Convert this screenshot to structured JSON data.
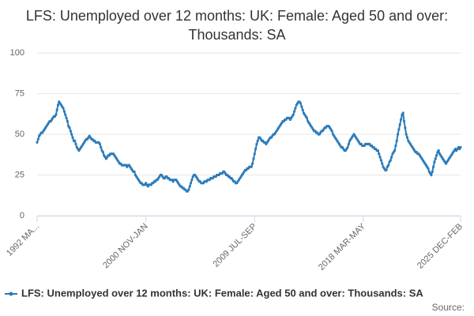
{
  "chart_data": {
    "type": "line",
    "title": "LFS: Unemployed over 12 months: UK: Female: Aged 50 and over: Thousands: SA",
    "source": "Source:",
    "categories": [
      "1992 MA...",
      null,
      null,
      null,
      null,
      null,
      null,
      null,
      null,
      null,
      null,
      null,
      null,
      null,
      null,
      null,
      null,
      null,
      null,
      null,
      null,
      null,
      null,
      null,
      null,
      null,
      null,
      null,
      null,
      null,
      null,
      null,
      null,
      null,
      null,
      null,
      null,
      null,
      null,
      null,
      null,
      null,
      null,
      null,
      null,
      null,
      null,
      null,
      null,
      null,
      null,
      null,
      null,
      null,
      null,
      null,
      null,
      null,
      null,
      null,
      null,
      null,
      null,
      null,
      null,
      null,
      null,
      null,
      null,
      null,
      null,
      null,
      null,
      null,
      null,
      null,
      null,
      null,
      null,
      null,
      null,
      null,
      null,
      null,
      null,
      null,
      null,
      null,
      null,
      null,
      null,
      null,
      null,
      null,
      null,
      null,
      null,
      null,
      null,
      null,
      null,
      null,
      null,
      null,
      "2000 NOV-JAN",
      null,
      null,
      null,
      null,
      null,
      null,
      null,
      null,
      null,
      null,
      null,
      null,
      null,
      null,
      null,
      null,
      null,
      null,
      null,
      null,
      null,
      null,
      null,
      null,
      null,
      null,
      null,
      null,
      null,
      null,
      null,
      null,
      null,
      null,
      null,
      null,
      null,
      null,
      null,
      null,
      null,
      null,
      null,
      null,
      null,
      null,
      null,
      null,
      null,
      null,
      null,
      null,
      null,
      null,
      null,
      null,
      null,
      null,
      null,
      null,
      null,
      null,
      null,
      null,
      null,
      null,
      null,
      null,
      null,
      null,
      null,
      null,
      null,
      null,
      null,
      null,
      null,
      null,
      null,
      null,
      null,
      null,
      null,
      null,
      null,
      null,
      null,
      null,
      null,
      null,
      null,
      null,
      null,
      null,
      null,
      null,
      null,
      null,
      null,
      null,
      null,
      null,
      null,
      "2009 JUL-SEP",
      null,
      null,
      null,
      null,
      null,
      null,
      null,
      null,
      null,
      null,
      null,
      null,
      null,
      null,
      null,
      null,
      null,
      null,
      null,
      null,
      null,
      null,
      null,
      null,
      null,
      null,
      null,
      null,
      null,
      null,
      null,
      null,
      null,
      null,
      null,
      null,
      null,
      null,
      null,
      null,
      null,
      null,
      null,
      null,
      null,
      null,
      null,
      null,
      null,
      null,
      null,
      null,
      null,
      null,
      null,
      null,
      null,
      null,
      null,
      null,
      null,
      null,
      null,
      null,
      null,
      null,
      null,
      null,
      null,
      null,
      null,
      null,
      null,
      null,
      null,
      null,
      null,
      null,
      null,
      null,
      null,
      null,
      null,
      null,
      null,
      null,
      null,
      null,
      null,
      null,
      null,
      null,
      null,
      null,
      null,
      null,
      null,
      null,
      null,
      null,
      null,
      null,
      null,
      "2018 MAR-MAY",
      null,
      null,
      null,
      null,
      null,
      null,
      null,
      null,
      null,
      null,
      null,
      null,
      null,
      null,
      null,
      null,
      null,
      null,
      null,
      null,
      null,
      null,
      null,
      null,
      null,
      null,
      null,
      null,
      null,
      null,
      null,
      null,
      null,
      null,
      null,
      null,
      null,
      null,
      null,
      null,
      null,
      null,
      null,
      null,
      null,
      null,
      null,
      null,
      null,
      null,
      null,
      null,
      null,
      null,
      null,
      null,
      null,
      null,
      null,
      null,
      null,
      null,
      null,
      null,
      null,
      null,
      null,
      null,
      null,
      null,
      null,
      null,
      null,
      null,
      null,
      null,
      null,
      null,
      null,
      null,
      null,
      null,
      null,
      null,
      null,
      null,
      null,
      null,
      null,
      null,
      null,
      null,
      "2025 DEC-FEB"
    ],
    "series": [
      {
        "name": "LFS: Unemployed over 12 months: UK: Female: Aged 50 and over: Thousands: SA",
        "color": "#2b7bba",
        "values": [
          45,
          47,
          49,
          50,
          51,
          51,
          52,
          53,
          54,
          55,
          56,
          57,
          58,
          58,
          59,
          60,
          61,
          61,
          62,
          65,
          68,
          70,
          69,
          68,
          67,
          66,
          64,
          62,
          60,
          58,
          55,
          54,
          52,
          50,
          48,
          46,
          46,
          44,
          42,
          41,
          40,
          41,
          42,
          43,
          44,
          45,
          46,
          47,
          47,
          48,
          49,
          48,
          47,
          47,
          46,
          46,
          45,
          45,
          45,
          45,
          44,
          42,
          40,
          39,
          37,
          36,
          35,
          36,
          37,
          37,
          38,
          38,
          38,
          38,
          37,
          36,
          35,
          34,
          33,
          32,
          32,
          31,
          31,
          31,
          31,
          31,
          30,
          31,
          31,
          30,
          29,
          28,
          27,
          27,
          25,
          24,
          23,
          22,
          21,
          20,
          20,
          19,
          19,
          19,
          20,
          19,
          18,
          19,
          19,
          19,
          20,
          20,
          21,
          21,
          22,
          22,
          23,
          24,
          25,
          25,
          24,
          23,
          23,
          24,
          24,
          23,
          23,
          22,
          22,
          22,
          21,
          22,
          22,
          22,
          21,
          20,
          19,
          18,
          18,
          17,
          17,
          16,
          16,
          15,
          15,
          16,
          18,
          20,
          22,
          24,
          25,
          25,
          24,
          23,
          22,
          21,
          21,
          20,
          20,
          20,
          21,
          21,
          21,
          22,
          22,
          22,
          23,
          23,
          23,
          24,
          24,
          24,
          25,
          25,
          25,
          26,
          26,
          26,
          27,
          27,
          26,
          25,
          25,
          24,
          24,
          23,
          23,
          22,
          21,
          21,
          20,
          20,
          21,
          22,
          23,
          24,
          25,
          26,
          27,
          28,
          28,
          29,
          29,
          30,
          30,
          30,
          32,
          35,
          38,
          41,
          44,
          46,
          48,
          48,
          47,
          46,
          46,
          45,
          45,
          44,
          45,
          46,
          47,
          48,
          48,
          49,
          50,
          50,
          51,
          52,
          53,
          54,
          55,
          56,
          57,
          58,
          58,
          59,
          59,
          60,
          60,
          60,
          59,
          60,
          61,
          62,
          64,
          66,
          68,
          69,
          70,
          70,
          69,
          67,
          65,
          63,
          62,
          61,
          60,
          58,
          57,
          56,
          55,
          54,
          53,
          52,
          52,
          51,
          51,
          50,
          50,
          51,
          52,
          52,
          53,
          54,
          54,
          55,
          55,
          55,
          54,
          53,
          52,
          50,
          49,
          48,
          47,
          46,
          45,
          44,
          43,
          42,
          42,
          41,
          40,
          40,
          41,
          42,
          44,
          46,
          47,
          48,
          49,
          50,
          49,
          48,
          47,
          46,
          45,
          44,
          44,
          43,
          43,
          43,
          44,
          44,
          44,
          44,
          44,
          43,
          43,
          42,
          42,
          41,
          41,
          40,
          40,
          38,
          36,
          34,
          32,
          30,
          29,
          28,
          28,
          30,
          31,
          33,
          34,
          36,
          38,
          39,
          40,
          43,
          46,
          50,
          53,
          56,
          59,
          62,
          63,
          58,
          54,
          50,
          48,
          46,
          45,
          44,
          43,
          42,
          41,
          40,
          39,
          39,
          38,
          38,
          37,
          36,
          35,
          34,
          33,
          32,
          31,
          30,
          29,
          27,
          26,
          25,
          27,
          30,
          33,
          35,
          37,
          39,
          40,
          38,
          37,
          36,
          35,
          34,
          33,
          32,
          33,
          34,
          35,
          36,
          37,
          38,
          39,
          40,
          41,
          40,
          41,
          42,
          41,
          42
        ]
      }
    ],
    "ylim": [
      0,
      100
    ],
    "yticks": [
      0,
      25,
      50,
      75,
      100
    ],
    "grid": true
  }
}
